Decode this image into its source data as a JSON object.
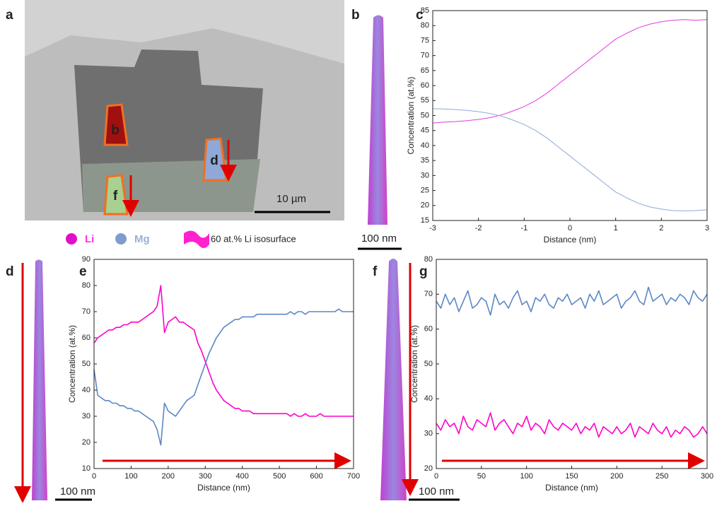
{
  "panels": {
    "labels": [
      "a",
      "b",
      "c",
      "d",
      "e",
      "f",
      "g"
    ],
    "sem_regions": [
      "b",
      "d",
      "f"
    ],
    "scale_bars": [
      "10 µm",
      "100 nm",
      "100 nm",
      "100 nm"
    ],
    "legend": [
      "60 at.% Li isosurface"
    ]
  },
  "chart_data": [
    {
      "type": "line",
      "x_label": "Distance (nm)",
      "y_label": "Concentration (at.%)",
      "x": [
        -3,
        -2.75,
        -2.5,
        -2.25,
        -2,
        -1.75,
        -1.5,
        -1.25,
        -1,
        -0.75,
        -0.5,
        -0.25,
        0,
        0.25,
        0.5,
        0.75,
        1,
        1.25,
        1.5,
        1.75,
        2,
        2.25,
        2.5,
        2.75,
        3
      ],
      "series": [
        {
          "name": "Li",
          "color": "#e23be0",
          "values": [
            47.5,
            47.8,
            48,
            48.3,
            48.7,
            49.3,
            50.2,
            51.5,
            53,
            55,
            57.5,
            60.5,
            63.5,
            66.5,
            69.5,
            72.5,
            75.5,
            77.5,
            79.3,
            80.5,
            81.3,
            81.8,
            82,
            81.8,
            82
          ]
        },
        {
          "name": "Mg",
          "color": "#8fa8d8",
          "values": [
            52.3,
            52.2,
            52,
            51.7,
            51.3,
            50.7,
            49.8,
            48.5,
            47,
            45,
            42.5,
            39.5,
            36.5,
            33.5,
            30.5,
            27.5,
            24.5,
            22.5,
            20.7,
            19.5,
            18.8,
            18.3,
            18.2,
            18.3,
            18.6
          ]
        }
      ],
      "xlim": [
        -3,
        3
      ],
      "ylim": [
        15,
        85
      ],
      "xticks": [
        -3,
        -2,
        -1,
        0,
        1,
        2,
        3
      ],
      "yticks": [
        15,
        20,
        25,
        30,
        35,
        40,
        45,
        50,
        55,
        60,
        65,
        70,
        75,
        80,
        85
      ]
    },
    {
      "type": "line",
      "x_label": "Distance (nm)",
      "y_label": "Concentration (at.%)",
      "x": [
        0,
        10,
        20,
        30,
        40,
        50,
        60,
        70,
        80,
        90,
        100,
        110,
        120,
        130,
        140,
        150,
        160,
        170,
        180,
        190,
        200,
        210,
        220,
        230,
        240,
        250,
        260,
        270,
        280,
        290,
        300,
        310,
        320,
        330,
        340,
        350,
        360,
        370,
        380,
        390,
        400,
        410,
        420,
        430,
        440,
        450,
        460,
        470,
        480,
        490,
        500,
        510,
        520,
        530,
        540,
        550,
        560,
        570,
        580,
        590,
        600,
        610,
        620,
        630,
        640,
        650,
        660,
        670,
        680,
        690,
        700
      ],
      "series": [
        {
          "color": "#ff00cc",
          "values": [
            58,
            60,
            61,
            62,
            63,
            63,
            64,
            64,
            65,
            65,
            66,
            66,
            66,
            67,
            68,
            69,
            70,
            72,
            80,
            62,
            66,
            67,
            68,
            66,
            66,
            65,
            64,
            63,
            58,
            55,
            51,
            47,
            43,
            40,
            38,
            36,
            35,
            34,
            33,
            33,
            32,
            32,
            32,
            31,
            31,
            31,
            31,
            31,
            31,
            31,
            31,
            31,
            31,
            30,
            31,
            30,
            30,
            31,
            30,
            30,
            30,
            31,
            30,
            30,
            30,
            30,
            30,
            30,
            30,
            30,
            30
          ]
        },
        {
          "color": "#5b87c6",
          "values": [
            48,
            38,
            37,
            36,
            36,
            35,
            35,
            34,
            34,
            33,
            33,
            32,
            32,
            31,
            30,
            29,
            28,
            25,
            19,
            35,
            32,
            31,
            30,
            32,
            34,
            36,
            37,
            38,
            42,
            46,
            50,
            54,
            57,
            60,
            62,
            64,
            65,
            66,
            67,
            67,
            68,
            68,
            68,
            68,
            69,
            69,
            69,
            69,
            69,
            69,
            69,
            69,
            69,
            70,
            69,
            70,
            70,
            69,
            70,
            70,
            70,
            70,
            70,
            70,
            70,
            70,
            71,
            70,
            70,
            70,
            70
          ]
        }
      ],
      "xlim": [
        0,
        700
      ],
      "ylim": [
        10,
        90
      ],
      "xticks": [
        0,
        100,
        200,
        300,
        400,
        500,
        600,
        700
      ],
      "yticks": [
        10,
        20,
        30,
        40,
        50,
        60,
        70,
        80,
        90
      ]
    },
    {
      "type": "line",
      "x_label": "Distance (nm)",
      "y_label": "Concentration (at.%)",
      "x": [
        0,
        5,
        10,
        15,
        20,
        25,
        30,
        35,
        40,
        45,
        50,
        55,
        60,
        65,
        70,
        75,
        80,
        85,
        90,
        95,
        100,
        105,
        110,
        115,
        120,
        125,
        130,
        135,
        140,
        145,
        150,
        155,
        160,
        165,
        170,
        175,
        180,
        185,
        190,
        195,
        200,
        205,
        210,
        215,
        220,
        225,
        230,
        235,
        240,
        245,
        250,
        255,
        260,
        265,
        270,
        275,
        280,
        285,
        290,
        295,
        300
      ],
      "series": [
        {
          "color": "#5b87c6",
          "values": [
            68,
            66,
            70,
            67,
            69,
            65,
            68,
            71,
            66,
            67,
            69,
            68,
            64,
            70,
            67,
            68,
            66,
            69,
            71,
            67,
            68,
            65,
            69,
            68,
            70,
            67,
            66,
            69,
            68,
            70,
            67,
            68,
            69,
            66,
            70,
            68,
            71,
            67,
            68,
            69,
            70,
            66,
            68,
            69,
            71,
            68,
            67,
            72,
            68,
            69,
            70,
            67,
            69,
            68,
            70,
            69,
            67,
            71,
            69,
            68,
            70
          ]
        },
        {
          "color": "#ff00cc",
          "values": [
            33,
            31,
            34,
            32,
            33,
            30,
            35,
            32,
            31,
            34,
            33,
            32,
            36,
            31,
            33,
            34,
            32,
            30,
            33,
            32,
            35,
            31,
            33,
            32,
            30,
            34,
            32,
            31,
            33,
            32,
            31,
            33,
            30,
            32,
            31,
            33,
            29,
            32,
            31,
            30,
            32,
            30,
            31,
            33,
            29,
            32,
            31,
            30,
            33,
            31,
            30,
            32,
            29,
            31,
            30,
            32,
            31,
            29,
            30,
            32,
            30
          ]
        }
      ],
      "xlim": [
        0,
        300
      ],
      "ylim": [
        20,
        80
      ],
      "xticks": [
        0,
        50,
        100,
        150,
        200,
        250,
        300
      ],
      "yticks": [
        20,
        30,
        40,
        50,
        60,
        70,
        80
      ]
    }
  ]
}
